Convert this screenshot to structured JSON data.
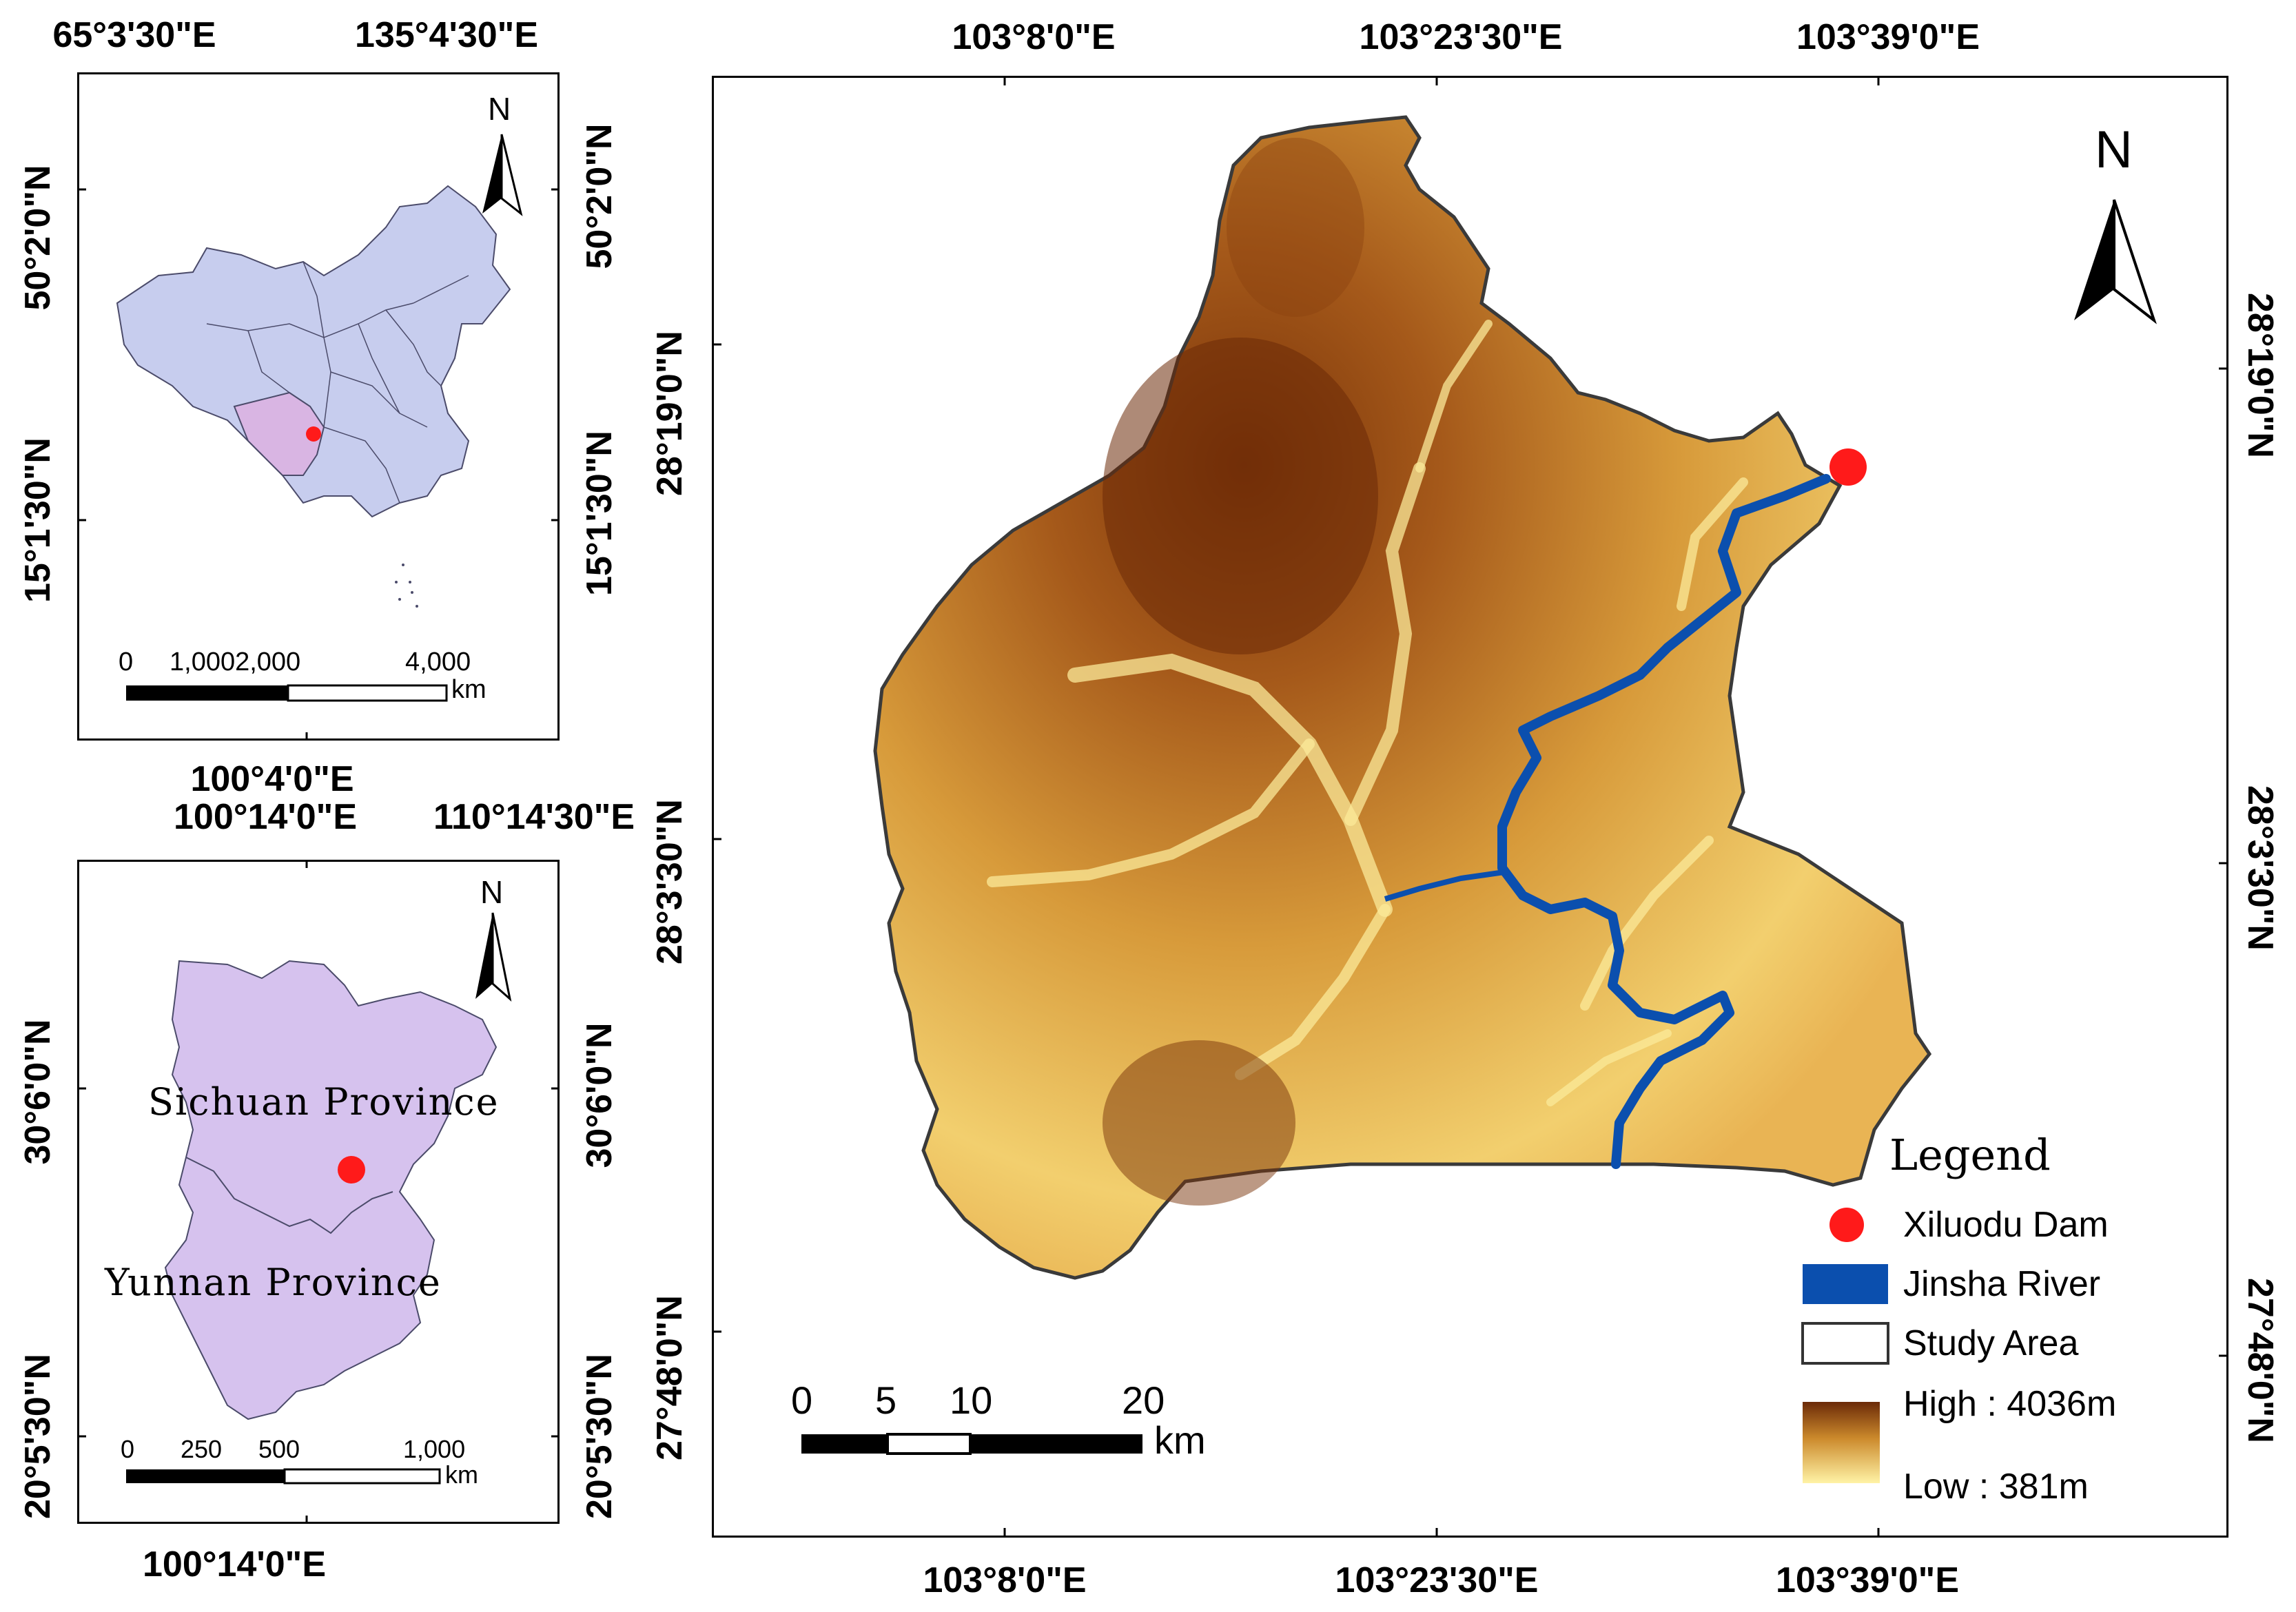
{
  "inset_china": {
    "top_labels": [
      "65°3'30\"E",
      "135°4'30\"E"
    ],
    "bottom_label": "100°4'0\"E",
    "left_labels": [
      "50°2'0\"N",
      "15°1'30\"N"
    ],
    "right_labels": [
      "50°2'0\"N",
      "15°1'30\"N"
    ],
    "north": "N",
    "scale_ticks": [
      "0",
      "1,0002,000",
      "4,000"
    ],
    "scale_unit": "km",
    "colors": {
      "land": "#c7cdee",
      "highlight": "#d9b5e3",
      "point": "#ff1a1a"
    }
  },
  "inset_province": {
    "top_labels": [
      "100°14'0\"E",
      "110°14'30\"E"
    ],
    "bottom_label": "100°14'0\"E",
    "left_labels": [
      "30°6'0\"N",
      "20°5'30\"N"
    ],
    "right_labels": [
      "30°6'0\"N",
      "20°5'30\"N"
    ],
    "north": "N",
    "province_labels": [
      "Sichuan Province",
      "Yunnan Province"
    ],
    "scale_ticks": [
      "0",
      "250",
      "500",
      "1,000"
    ],
    "scale_unit": "km",
    "colors": {
      "land": "#d6c2ee",
      "point": "#ff1a1a"
    }
  },
  "main_map": {
    "top_labels": [
      "103°8'0\"E",
      "103°23'30\"E",
      "103°39'0\"E"
    ],
    "bottom_labels": [
      "103°8'0\"E",
      "103°23'30\"E",
      "103°39'0\"E"
    ],
    "left_labels": [
      "28°19'0\"N",
      "28°3'30\"N",
      "27°48'0\"N"
    ],
    "right_labels": [
      "28°19'0\"N",
      "28°3'30\"N",
      "27°48'0\"N"
    ],
    "north": "N",
    "scale_ticks": [
      "0",
      "5",
      "10",
      "20"
    ],
    "scale_unit": "km",
    "colors": {
      "high": "#6b2a08",
      "mid": "#cc8a2c",
      "low": "#fff3a6",
      "river": "#0b4fae",
      "dam": "#ff1a1a"
    }
  },
  "legend": {
    "title": "Legend",
    "items": [
      "Xiluodu Dam",
      "Jinsha River",
      "Study Area"
    ],
    "high_label": "High : 4036m",
    "low_label": "Low : 381m"
  }
}
